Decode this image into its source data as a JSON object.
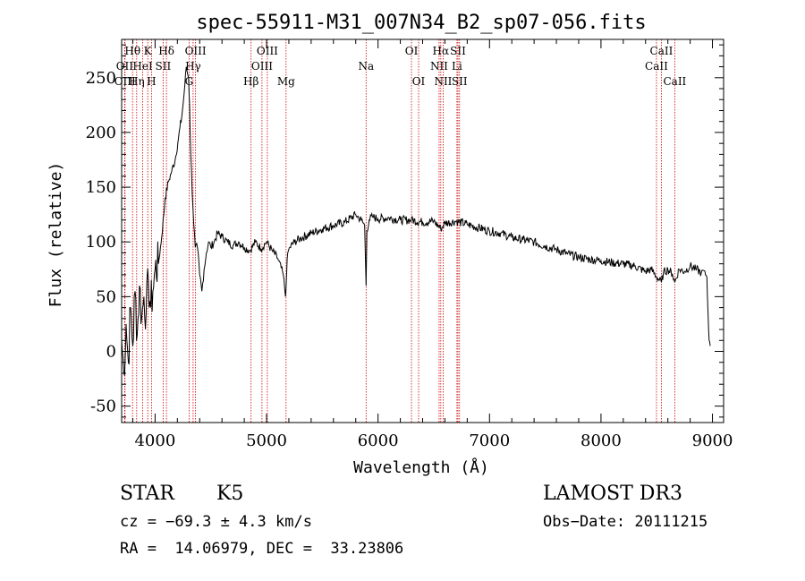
{
  "chart_data": {
    "type": "line",
    "title": "spec-55911-M31_007N34_B2_sp07-056.fits",
    "xlabel": "Wavelength (Å)",
    "ylabel": "Flux (relative)",
    "xlim": [
      3700,
      9100
    ],
    "ylim": [
      -65,
      285
    ],
    "x_ticks": [
      4000,
      5000,
      6000,
      7000,
      8000,
      9000
    ],
    "y_ticks": [
      -50,
      0,
      50,
      100,
      150,
      200,
      250
    ],
    "grid": false,
    "series": [
      {
        "x": [
          3700,
          3720,
          3740,
          3760,
          3780,
          3800,
          3820,
          3840,
          3860,
          3880,
          3900,
          3920,
          3940,
          3960,
          3980,
          4000,
          4030,
          4060,
          4090,
          4120,
          4150,
          4180,
          4210,
          4240,
          4260,
          4280,
          4300,
          4310,
          4320,
          4340,
          4360,
          4380,
          4400,
          4420,
          4440,
          4460,
          4480,
          4500,
          4530,
          4560,
          4600,
          4650,
          4700,
          4750,
          4800,
          4850,
          4900,
          4950,
          5000,
          5050,
          5100,
          5150,
          5170,
          5180,
          5190,
          5210,
          5250,
          5300,
          5400,
          5500,
          5600,
          5700,
          5800,
          5850,
          5880,
          5893,
          5900,
          5920,
          5950,
          6000,
          6100,
          6200,
          6300,
          6400,
          6500,
          6562,
          6600,
          6700,
          6800,
          6900,
          7000,
          7100,
          7200,
          7300,
          7400,
          7500,
          7600,
          7700,
          7800,
          7900,
          8000,
          8100,
          8200,
          8300,
          8400,
          8450,
          8500,
          8542,
          8560,
          8600,
          8640,
          8662,
          8700,
          8750,
          8800,
          8850,
          8900,
          8920,
          8950,
          8960,
          8970,
          8980
        ],
        "y": [
          10,
          -20,
          25,
          -10,
          40,
          5,
          55,
          15,
          60,
          30,
          50,
          35,
          65,
          40,
          55,
          75,
          80,
          105,
          140,
          155,
          165,
          175,
          195,
          215,
          235,
          260,
          250,
          225,
          180,
          130,
          95,
          95,
          70,
          55,
          75,
          90,
          100,
          95,
          100,
          108,
          105,
          100,
          97,
          100,
          95,
          92,
          100,
          94,
          100,
          92,
          85,
          70,
          50,
          72,
          90,
          95,
          100,
          103,
          108,
          112,
          115,
          118,
          125,
          120,
          115,
          60,
          110,
          120,
          123,
          121,
          122,
          120,
          120,
          118,
          119,
          112,
          117,
          119,
          116,
          113,
          110,
          108,
          104,
          102,
          100,
          96,
          93,
          89,
          86,
          84,
          83,
          81,
          80,
          78,
          73,
          75,
          68,
          63,
          72,
          75,
          71,
          63,
          75,
          73,
          78,
          75,
          72,
          74,
          68,
          35,
          10,
          5
        ]
      }
    ],
    "spectral_lines": [
      {
        "label": "Hθ",
        "x": 3798,
        "row": 0
      },
      {
        "label": "OII",
        "x": 3727,
        "row": 1
      },
      {
        "label": "OIII",
        "x": 3730,
        "row": 2
      },
      {
        "label": "K",
        "x": 3934,
        "row": 0
      },
      {
        "label": "HeI",
        "x": 3889,
        "row": 1
      },
      {
        "label": "Hη",
        "x": 3835,
        "row": 2
      },
      {
        "label": "Hδ",
        "x": 4102,
        "row": 0
      },
      {
        "label": "SII",
        "x": 4072,
        "row": 1
      },
      {
        "label": "H",
        "x": 3968,
        "row": 2
      },
      {
        "label": "OIII",
        "x": 4363,
        "row": 0
      },
      {
        "label": "Hγ",
        "x": 4341,
        "row": 1
      },
      {
        "label": "G",
        "x": 4305,
        "row": 2
      },
      {
        "label": "OIII",
        "x": 5007,
        "row": 0
      },
      {
        "label": "OIII",
        "x": 4959,
        "row": 1
      },
      {
        "label": "Hβ",
        "x": 4861,
        "row": 2
      },
      {
        "label": "Mg",
        "x": 5175,
        "row": 2
      },
      {
        "label": "Na",
        "x": 5893,
        "row": 1
      },
      {
        "label": "OI",
        "x": 6300,
        "row": 0
      },
      {
        "label": "OI",
        "x": 6364,
        "row": 2
      },
      {
        "label": "Hα",
        "x": 6563,
        "row": 0
      },
      {
        "label": "NII",
        "x": 6548,
        "row": 1
      },
      {
        "label": "NII",
        "x": 6584,
        "row": 2
      },
      {
        "label": "SII",
        "x": 6717,
        "row": 0
      },
      {
        "label": "Li",
        "x": 6708,
        "row": 1
      },
      {
        "label": "SII",
        "x": 6731,
        "row": 2
      },
      {
        "label": "CaII",
        "x": 8542,
        "row": 0
      },
      {
        "label": "CaII",
        "x": 8498,
        "row": 1
      },
      {
        "label": "CaII",
        "x": 8662,
        "row": 2
      }
    ]
  },
  "info": {
    "object_class": "STAR",
    "subclass": "K5",
    "survey": "LAMOST DR3",
    "cz": "cz = −69.3 ± 4.3 km/s",
    "obs_date": "Obs−Date: 20111215",
    "coords": "RA =  14.06979, DEC =  33.23806"
  },
  "colors": {
    "spectrum": "#000000",
    "line_markers": "#cc0000",
    "axes": "#000000"
  }
}
